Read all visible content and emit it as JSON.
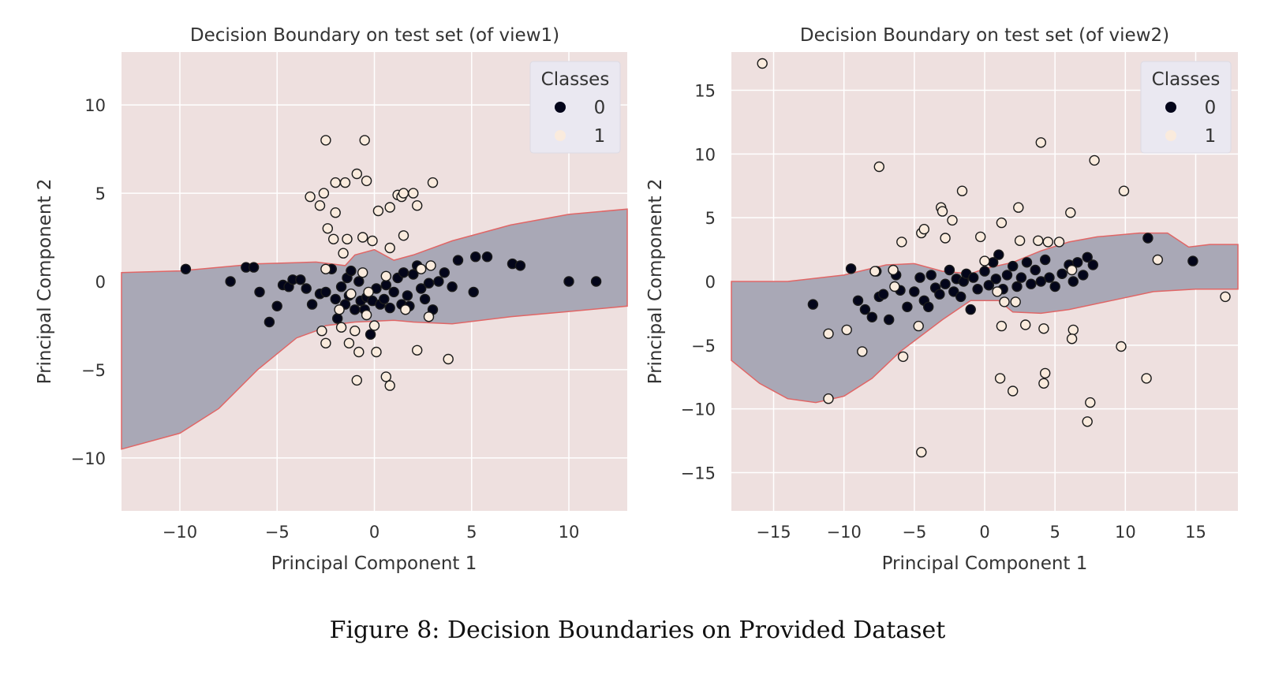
{
  "figure": {
    "caption": "Figure 8: Decision Boundaries on Provided Dataset"
  },
  "colors": {
    "background_region": "#eee0df",
    "class0_region": "#a9a8b6",
    "boundary_line": "#e06666",
    "class0_point": "#03051a",
    "class1_point": "#faebdd",
    "grid": "#ffffff"
  },
  "chart_data": [
    {
      "type": "scatter",
      "title": "Decision Boundary on test set (of view1)",
      "xlabel": "Principal Component 1",
      "ylabel": "Principal Component 2",
      "xlim": [
        -13,
        13
      ],
      "ylim": [
        -13,
        13
      ],
      "xticks": [
        -10,
        -5,
        0,
        5,
        10
      ],
      "yticks": [
        -10,
        -5,
        0,
        5,
        10
      ],
      "xtick_labels": [
        "−10",
        "−5",
        "0",
        "5",
        "10"
      ],
      "ytick_labels": [
        "−10",
        "−5",
        "0",
        "5",
        "10"
      ],
      "grid": true,
      "legend": {
        "title": "Classes",
        "placement": "top-right",
        "entries": [
          "0",
          "1"
        ]
      },
      "region_class0": [
        [
          -13,
          0.5
        ],
        [
          -10,
          0.6
        ],
        [
          -6,
          1.0
        ],
        [
          -3,
          1.1
        ],
        [
          -1.5,
          0.9
        ],
        [
          -1,
          1.5
        ],
        [
          0,
          1.8
        ],
        [
          1,
          1.2
        ],
        [
          2,
          1.5
        ],
        [
          4,
          2.3
        ],
        [
          7,
          3.2
        ],
        [
          10,
          3.8
        ],
        [
          13,
          4.1
        ],
        [
          13,
          -1.4
        ],
        [
          10,
          -1.7
        ],
        [
          7,
          -2.0
        ],
        [
          4,
          -2.4
        ],
        [
          2,
          -2.3
        ],
        [
          1,
          -2.2
        ],
        [
          -1,
          -2.3
        ],
        [
          -2.5,
          -2.5
        ],
        [
          -3,
          -2.8
        ],
        [
          -4,
          -3.2
        ],
        [
          -6,
          -5.0
        ],
        [
          -8,
          -7.2
        ],
        [
          -10,
          -8.6
        ],
        [
          -13,
          -9.5
        ]
      ],
      "series": [
        {
          "name": "0",
          "points": [
            [
              -9.7,
              0.7
            ],
            [
              -7.4,
              0.0
            ],
            [
              -6.6,
              0.8
            ],
            [
              -6.2,
              0.8
            ],
            [
              -5.9,
              -0.6
            ],
            [
              -5.4,
              -2.3
            ],
            [
              -5.0,
              -1.4
            ],
            [
              -4.7,
              -0.2
            ],
            [
              -4.4,
              -0.3
            ],
            [
              -4.2,
              0.1
            ],
            [
              -3.8,
              0.1
            ],
            [
              -3.5,
              -0.4
            ],
            [
              -3.2,
              -1.3
            ],
            [
              -2.8,
              -0.7
            ],
            [
              -2.5,
              -0.6
            ],
            [
              -2.2,
              0.7
            ],
            [
              -2.0,
              -1.0
            ],
            [
              -1.9,
              -2.1
            ],
            [
              -1.7,
              -0.3
            ],
            [
              -1.5,
              -1.3
            ],
            [
              -1.4,
              0.2
            ],
            [
              -1.3,
              -0.8
            ],
            [
              -1.2,
              0.6
            ],
            [
              -1.0,
              -1.6
            ],
            [
              -0.8,
              0.0
            ],
            [
              -0.7,
              -1.1
            ],
            [
              -0.5,
              -1.6
            ],
            [
              -0.4,
              -0.9
            ],
            [
              -0.2,
              -3.0
            ],
            [
              -0.1,
              -1.1
            ],
            [
              0.1,
              -0.4
            ],
            [
              0.3,
              -1.3
            ],
            [
              0.5,
              -1.0
            ],
            [
              0.6,
              -0.2
            ],
            [
              0.8,
              -1.5
            ],
            [
              1.0,
              -0.6
            ],
            [
              1.2,
              0.2
            ],
            [
              1.4,
              -1.3
            ],
            [
              1.5,
              0.5
            ],
            [
              1.7,
              -0.8
            ],
            [
              1.8,
              -1.4
            ],
            [
              2.0,
              0.4
            ],
            [
              2.2,
              0.9
            ],
            [
              2.4,
              -0.4
            ],
            [
              2.6,
              -1.0
            ],
            [
              2.8,
              -0.1
            ],
            [
              3.0,
              -1.6
            ],
            [
              3.3,
              0.0
            ],
            [
              3.6,
              0.5
            ],
            [
              4.0,
              -0.3
            ],
            [
              4.3,
              1.2
            ],
            [
              5.1,
              -0.6
            ],
            [
              5.2,
              1.4
            ],
            [
              5.8,
              1.4
            ],
            [
              7.1,
              1.0
            ],
            [
              7.5,
              0.9
            ],
            [
              10.0,
              0.0
            ],
            [
              11.4,
              0.0
            ]
          ]
        },
        {
          "name": "1",
          "points": [
            [
              -2.5,
              8.0
            ],
            [
              -0.5,
              8.0
            ],
            [
              -0.9,
              6.1
            ],
            [
              -0.4,
              5.7
            ],
            [
              -2.0,
              5.6
            ],
            [
              -1.5,
              5.6
            ],
            [
              -2.6,
              5.0
            ],
            [
              -3.3,
              4.8
            ],
            [
              -2.8,
              4.3
            ],
            [
              -2.0,
              3.9
            ],
            [
              0.2,
              4.0
            ],
            [
              1.2,
              4.9
            ],
            [
              1.4,
              4.8
            ],
            [
              1.5,
              5.0
            ],
            [
              2.0,
              5.0
            ],
            [
              2.2,
              4.3
            ],
            [
              3.0,
              5.6
            ],
            [
              0.8,
              4.2
            ],
            [
              -2.4,
              3.0
            ],
            [
              -2.1,
              2.4
            ],
            [
              -1.4,
              2.4
            ],
            [
              -0.6,
              2.5
            ],
            [
              -0.1,
              2.3
            ],
            [
              1.5,
              2.6
            ],
            [
              0.8,
              1.9
            ],
            [
              -1.6,
              1.6
            ],
            [
              -2.5,
              0.7
            ],
            [
              -0.6,
              0.5
            ],
            [
              0.6,
              0.3
            ],
            [
              2.4,
              0.7
            ],
            [
              2.9,
              0.9
            ],
            [
              -2.5,
              -3.5
            ],
            [
              -1.3,
              -3.5
            ],
            [
              -1.0,
              -2.8
            ],
            [
              -0.8,
              -4.0
            ],
            [
              0.1,
              -4.0
            ],
            [
              -0.9,
              -5.6
            ],
            [
              0.6,
              -5.4
            ],
            [
              0.8,
              -5.9
            ],
            [
              2.2,
              -3.9
            ],
            [
              3.8,
              -4.4
            ],
            [
              2.8,
              -2.0
            ],
            [
              1.6,
              -1.6
            ],
            [
              -0.4,
              -1.9
            ],
            [
              -1.7,
              -2.6
            ],
            [
              -2.7,
              -2.8
            ],
            [
              -1.2,
              -0.7
            ],
            [
              -0.3,
              -0.6
            ],
            [
              -1.8,
              -1.6
            ],
            [
              0.0,
              -2.5
            ]
          ]
        }
      ]
    },
    {
      "type": "scatter",
      "title": "Decision Boundary on test set (of view2)",
      "xlabel": "Principal Component 1",
      "ylabel": "Principal Component 2",
      "xlim": [
        -18,
        18
      ],
      "ylim": [
        -18,
        18
      ],
      "xticks": [
        -15,
        -10,
        -5,
        0,
        5,
        10,
        15
      ],
      "yticks": [
        -15,
        -10,
        -5,
        0,
        5,
        10,
        15
      ],
      "xtick_labels": [
        "−15",
        "−10",
        "−5",
        "0",
        "5",
        "10",
        "15"
      ],
      "ytick_labels": [
        "−15",
        "−10",
        "−5",
        "0",
        "5",
        "10",
        "15"
      ],
      "grid": true,
      "legend": {
        "title": "Classes",
        "placement": "top-right",
        "entries": [
          "0",
          "1"
        ]
      },
      "region_class0": [
        [
          -18,
          0.0
        ],
        [
          -14,
          0.0
        ],
        [
          -10,
          0.5
        ],
        [
          -7,
          1.3
        ],
        [
          -5,
          1.4
        ],
        [
          -3,
          0.8
        ],
        [
          -1,
          0.6
        ],
        [
          0,
          1.0
        ],
        [
          2,
          1.5
        ],
        [
          4,
          2.4
        ],
        [
          6,
          3.1
        ],
        [
          8,
          3.5
        ],
        [
          11,
          3.8
        ],
        [
          13,
          3.8
        ],
        [
          14.5,
          2.7
        ],
        [
          16,
          2.9
        ],
        [
          18,
          2.9
        ],
        [
          18,
          -0.6
        ],
        [
          15,
          -0.6
        ],
        [
          12,
          -0.8
        ],
        [
          9,
          -1.5
        ],
        [
          6,
          -2.2
        ],
        [
          4,
          -2.5
        ],
        [
          2,
          -2.4
        ],
        [
          1,
          -1.5
        ],
        [
          -1,
          -1.5
        ],
        [
          -3,
          -3.0
        ],
        [
          -6,
          -5.5
        ],
        [
          -8,
          -7.6
        ],
        [
          -10,
          -9.0
        ],
        [
          -12,
          -9.5
        ],
        [
          -14,
          -9.2
        ],
        [
          -16,
          -8.0
        ],
        [
          -18,
          -6.2
        ]
      ],
      "series": [
        {
          "name": "0",
          "points": [
            [
              -12.2,
              -1.8
            ],
            [
              -9.5,
              1.0
            ],
            [
              -9.0,
              -1.5
            ],
            [
              -8.5,
              -2.2
            ],
            [
              -8.0,
              -2.8
            ],
            [
              -7.7,
              0.8
            ],
            [
              -7.5,
              -1.2
            ],
            [
              -7.2,
              -1.0
            ],
            [
              -6.8,
              -3.0
            ],
            [
              -6.3,
              0.5
            ],
            [
              -6.0,
              -0.7
            ],
            [
              -5.5,
              -2.0
            ],
            [
              -5.0,
              -0.8
            ],
            [
              -4.6,
              0.3
            ],
            [
              -4.3,
              -1.5
            ],
            [
              -4.0,
              -2.0
            ],
            [
              -3.8,
              0.5
            ],
            [
              -3.5,
              -0.5
            ],
            [
              -3.2,
              -1.0
            ],
            [
              -2.8,
              -0.2
            ],
            [
              -2.5,
              0.9
            ],
            [
              -2.2,
              -0.8
            ],
            [
              -2.0,
              0.2
            ],
            [
              -1.7,
              -1.2
            ],
            [
              -1.5,
              0.0
            ],
            [
              -1.3,
              0.6
            ],
            [
              -1.0,
              -2.2
            ],
            [
              -0.8,
              0.3
            ],
            [
              -0.5,
              -0.6
            ],
            [
              0.0,
              0.8
            ],
            [
              0.3,
              -0.3
            ],
            [
              0.6,
              1.5
            ],
            [
              0.8,
              0.2
            ],
            [
              1.0,
              2.1
            ],
            [
              1.3,
              -0.6
            ],
            [
              1.6,
              0.5
            ],
            [
              2.0,
              1.2
            ],
            [
              2.3,
              -0.4
            ],
            [
              2.6,
              0.3
            ],
            [
              3.0,
              1.5
            ],
            [
              3.3,
              -0.2
            ],
            [
              3.6,
              0.9
            ],
            [
              4.0,
              0.0
            ],
            [
              4.3,
              1.7
            ],
            [
              4.6,
              0.3
            ],
            [
              5.0,
              -0.4
            ],
            [
              5.5,
              0.6
            ],
            [
              6.0,
              1.3
            ],
            [
              6.3,
              0.0
            ],
            [
              6.6,
              1.5
            ],
            [
              7.0,
              0.5
            ],
            [
              7.3,
              1.9
            ],
            [
              7.7,
              1.3
            ],
            [
              11.6,
              3.4
            ],
            [
              14.8,
              1.6
            ]
          ]
        },
        {
          "name": "1",
          "points": [
            [
              -15.8,
              17.1
            ],
            [
              -7.5,
              9.0
            ],
            [
              -1.6,
              7.1
            ],
            [
              4.0,
              10.9
            ],
            [
              7.8,
              9.5
            ],
            [
              9.9,
              7.1
            ],
            [
              -3.1,
              5.8
            ],
            [
              -3.0,
              5.5
            ],
            [
              -2.3,
              4.8
            ],
            [
              2.4,
              5.8
            ],
            [
              6.1,
              5.4
            ],
            [
              -4.5,
              3.8
            ],
            [
              -4.3,
              4.1
            ],
            [
              -5.9,
              3.1
            ],
            [
              -2.8,
              3.4
            ],
            [
              -0.3,
              3.5
            ],
            [
              1.2,
              4.6
            ],
            [
              2.5,
              3.2
            ],
            [
              3.8,
              3.2
            ],
            [
              4.5,
              3.1
            ],
            [
              5.3,
              3.1
            ],
            [
              -7.8,
              0.8
            ],
            [
              -6.5,
              0.9
            ],
            [
              -6.4,
              -0.4
            ],
            [
              1.4,
              -1.6
            ],
            [
              2.2,
              -1.6
            ],
            [
              6.2,
              0.9
            ],
            [
              12.3,
              1.7
            ],
            [
              17.1,
              -1.2
            ],
            [
              -11.1,
              -4.1
            ],
            [
              -9.8,
              -3.8
            ],
            [
              -8.7,
              -5.5
            ],
            [
              -4.7,
              -3.5
            ],
            [
              -5.8,
              -5.9
            ],
            [
              1.2,
              -3.5
            ],
            [
              2.9,
              -3.4
            ],
            [
              4.2,
              -3.7
            ],
            [
              6.3,
              -3.8
            ],
            [
              6.2,
              -4.5
            ],
            [
              9.7,
              -5.1
            ],
            [
              -11.1,
              -9.2
            ],
            [
              1.1,
              -7.6
            ],
            [
              2.0,
              -8.6
            ],
            [
              4.3,
              -7.2
            ],
            [
              4.2,
              -8.0
            ],
            [
              7.5,
              -9.5
            ],
            [
              7.3,
              -11.0
            ],
            [
              11.5,
              -7.6
            ],
            [
              -4.5,
              -13.4
            ],
            [
              0.0,
              1.6
            ],
            [
              0.9,
              -0.8
            ]
          ]
        }
      ]
    }
  ]
}
